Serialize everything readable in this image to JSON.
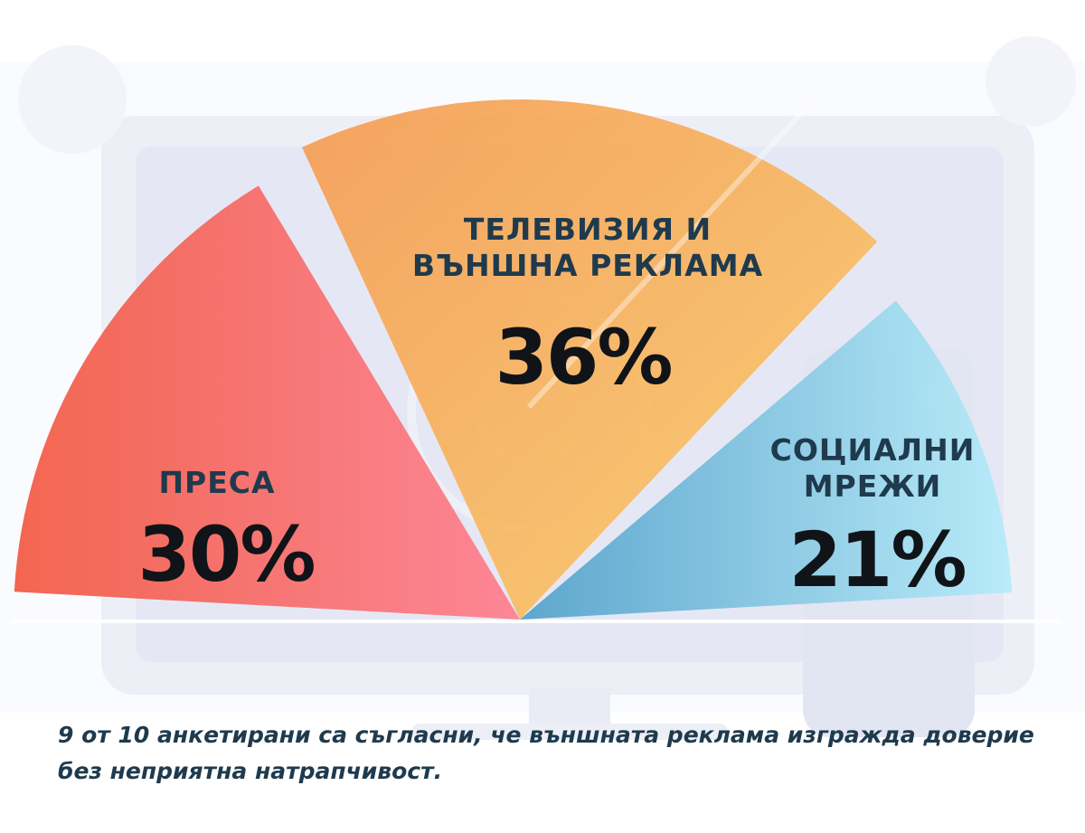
{
  "chart_data": {
    "type": "pie",
    "slices": [
      {
        "label": "ПРЕСА",
        "value": 30,
        "value_text": "30%",
        "colors": [
          "#f55a45",
          "#ff7b88"
        ]
      },
      {
        "label": "ТЕЛЕВИЗИЯ И ВЪНШНА РЕКЛАМА",
        "label_lines": [
          "ТЕЛЕВИЗИЯ И",
          "ВЪНШНА РЕКЛАМА"
        ],
        "value": 36,
        "value_text": "36%",
        "colors": [
          "#f7a155",
          "#fbc766"
        ]
      },
      {
        "label": "СОЦИАЛНИ МРЕЖИ",
        "label_lines": [
          "СОЦИАЛНИ",
          "МРЕЖИ"
        ],
        "value": 21,
        "value_text": "21%",
        "colors": [
          "#5ab3d6",
          "#a9e5f7"
        ]
      }
    ]
  },
  "caption": "9 от 10 анкетирани са съгласни, че външната реклама изгражда доверие без неприятна натрапчивост.",
  "colors": {
    "text_dark": "#1f3a4d",
    "value_text": "#101418",
    "background_illustration": "#e9ebf5"
  }
}
